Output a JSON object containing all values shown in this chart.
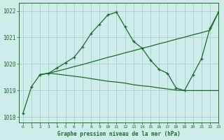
{
  "bg_color": "#ceecea",
  "grid_color": "#aacfcd",
  "line_color": "#1a6b2a",
  "title": "Graphe pression niveau de la mer (hPa)",
  "ylim": [
    1017.8,
    1022.3
  ],
  "xlim": [
    -0.5,
    23
  ],
  "yticks": [
    1018,
    1019,
    1020,
    1021,
    1022
  ],
  "xticks": [
    0,
    1,
    2,
    3,
    4,
    5,
    6,
    7,
    8,
    9,
    10,
    11,
    12,
    13,
    14,
    15,
    16,
    17,
    18,
    19,
    20,
    21,
    22,
    23
  ],
  "series1_x": [
    0,
    1,
    2,
    3,
    4,
    5,
    6,
    7,
    8,
    9,
    10,
    11,
    12,
    13,
    14,
    15,
    16,
    17,
    18,
    19,
    20,
    21,
    22,
    23
  ],
  "series1_y": [
    1018.15,
    1019.15,
    1019.6,
    1019.65,
    1019.85,
    1020.05,
    1020.25,
    1020.65,
    1021.15,
    1021.5,
    1021.85,
    1021.95,
    1021.4,
    1020.85,
    1020.6,
    1020.15,
    1019.8,
    1019.65,
    1019.1,
    1019.0,
    1019.6,
    1020.2,
    1021.35,
    1021.95
  ],
  "series2_x": [
    2,
    3,
    4,
    5,
    6,
    7,
    8,
    9,
    10,
    11,
    12,
    13,
    14,
    15,
    16,
    17,
    18,
    19,
    20,
    21,
    22,
    23
  ],
  "series2_y": [
    1019.6,
    1019.65,
    1019.62,
    1019.58,
    1019.54,
    1019.5,
    1019.45,
    1019.4,
    1019.35,
    1019.32,
    1019.28,
    1019.22,
    1019.18,
    1019.15,
    1019.1,
    1019.06,
    1019.02,
    1019.0,
    1019.0,
    1019.0,
    1019.0,
    1019.0
  ],
  "series3_x": [
    2,
    3,
    4,
    5,
    6,
    7,
    8,
    9,
    10,
    11,
    12,
    13,
    14,
    15,
    16,
    17,
    18,
    19,
    20,
    21,
    22,
    23
  ],
  "series3_y": [
    1019.6,
    1019.65,
    1019.73,
    1019.81,
    1019.9,
    1019.98,
    1020.07,
    1020.16,
    1020.25,
    1020.33,
    1020.42,
    1020.5,
    1020.59,
    1020.67,
    1020.76,
    1020.84,
    1020.93,
    1021.01,
    1021.1,
    1021.18,
    1021.27,
    1021.95
  ]
}
